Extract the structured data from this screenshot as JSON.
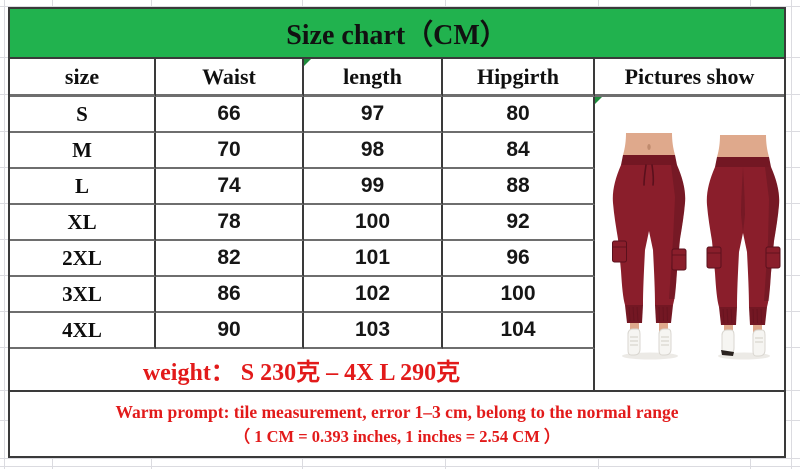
{
  "title": "Size chart（CM）",
  "table": {
    "columns": [
      "size",
      "Waist",
      "length",
      "Hipgirth",
      "Pictures show"
    ],
    "rows": [
      {
        "size": "S",
        "waist": "66",
        "length": "97",
        "hipgirth": "80"
      },
      {
        "size": "M",
        "waist": "70",
        "length": "98",
        "hipgirth": "84"
      },
      {
        "size": "L",
        "waist": "74",
        "length": "99",
        "hipgirth": "88"
      },
      {
        "size": "XL",
        "waist": "78",
        "length": "100",
        "hipgirth": "92"
      },
      {
        "size": "2XL",
        "waist": "82",
        "length": "101",
        "hipgirth": "96"
      },
      {
        "size": "3XL",
        "waist": "86",
        "length": "102",
        "hipgirth": "100"
      },
      {
        "size": "4XL",
        "waist": "90",
        "length": "103",
        "hipgirth": "104"
      }
    ]
  },
  "weight_note": "weight：  S 230克 – 4X L 290克",
  "warm_prompt": {
    "line1": "Warm prompt: tile measurement, error 1–3 cm, belong to the normal range",
    "line2": "（ 1 CM = 0.393 inches, 1 inches = 2.54 CM ）"
  },
  "pictures": {
    "alt": "Front and back view of burgundy jogger cargo pants with drawstring waist, side flap pockets and cuffed ankles, worn with white high-top sneakers"
  },
  "colors": {
    "header_green": "#21B24E",
    "text_red": "#E21A1A",
    "pants_burgundy": "#8A1E2B",
    "pants_dark": "#731723",
    "pocket_outline": "#5A101C",
    "skin": "#DFA98C",
    "skin_shadow": "#C08B6E",
    "shoe_white": "#F6F5F2",
    "shoe_detail": "#D9D6D0",
    "sole_dark": "#2A2320",
    "border_dark": "#3A3A3A",
    "border_gray": "#6E6E6E",
    "gridline_gray": "#DBDBE0",
    "flag_green": "#1E8C3C",
    "shadow_gray": "#ECEAE6"
  }
}
